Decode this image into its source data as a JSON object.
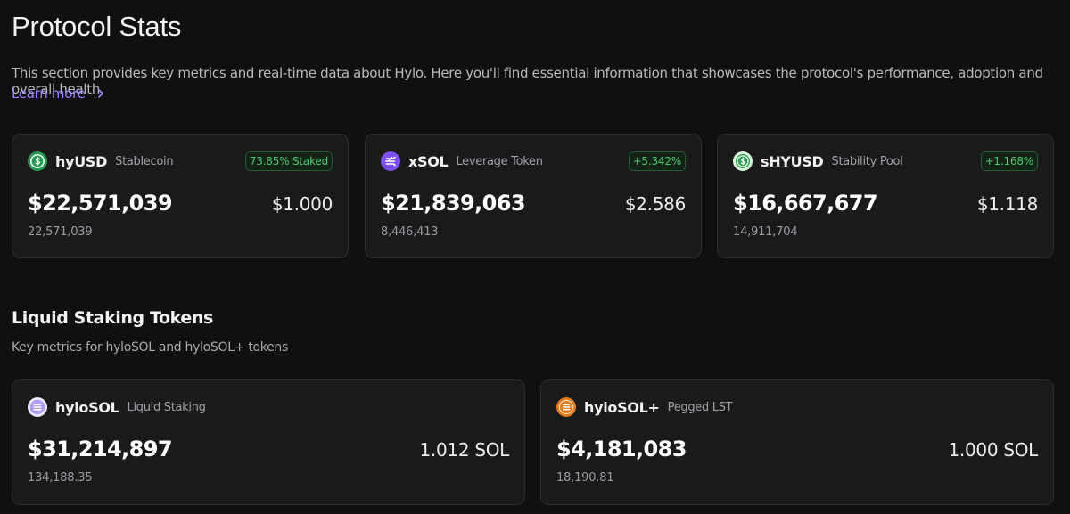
{
  "header": {
    "title": "Protocol Stats",
    "description": "This section provides key metrics and real-time data about Hylo. Here you'll find essential information that showcases the protocol's performance, adoption and overall health.",
    "learn_more": "Learn more"
  },
  "stats": [
    {
      "icon": "hyusd-coin-icon",
      "name": "hyUSD",
      "type": "Stablecoin",
      "badge": "73.85% Staked",
      "value": "$22,571,039",
      "price": "$1.000",
      "supply": "22,571,039"
    },
    {
      "icon": "xsol-coin-icon",
      "name": "xSOL",
      "type": "Leverage Token",
      "badge": "+5.342%",
      "value": "$21,839,063",
      "price": "$2.586",
      "supply": "8,446,413"
    },
    {
      "icon": "shyusd-coin-icon",
      "name": "sHYUSD",
      "type": "Stability Pool",
      "badge": "+1.168%",
      "value": "$16,667,677",
      "price": "$1.118",
      "supply": "14,911,704"
    }
  ],
  "lst_section": {
    "title": "Liquid Staking Tokens",
    "subtitle": "Key metrics for hyloSOL and hyloSOL+ tokens"
  },
  "lst": [
    {
      "icon": "hylosol-coin-icon",
      "name": "hyloSOL",
      "type": "Liquid Staking",
      "value": "$31,214,897",
      "price": "1.012 SOL",
      "supply": "134,188.35"
    },
    {
      "icon": "hylosol-plus-coin-icon",
      "name": "hyloSOL+",
      "type": "Pegged LST",
      "value": "$4,181,083",
      "price": "1.000 SOL",
      "supply": "18,190.81"
    }
  ],
  "colors": {
    "background": "#101010",
    "card": "#1a1a1b",
    "accent_link": "#9d80f7",
    "positive": "#4cc86e"
  }
}
